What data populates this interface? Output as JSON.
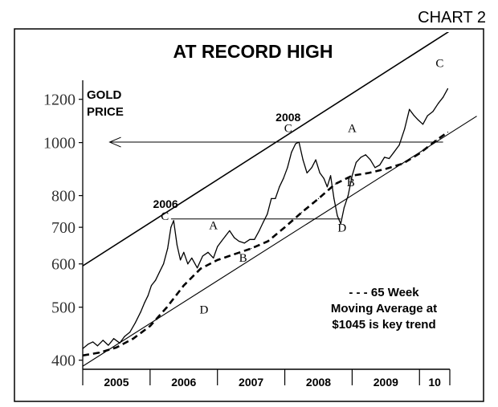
{
  "chart_label": "CHART  2",
  "chart_data": {
    "type": "line",
    "title": "AT RECORD HIGH",
    "ylabel_line1": "GOLD",
    "ylabel_line2": "PRICE",
    "y_scale": "log",
    "ylim": [
      385,
      1300
    ],
    "yticks": [
      {
        "value": 1200,
        "label": "1200"
      },
      {
        "value": 1000,
        "label": "1000"
      },
      {
        "value": 800,
        "label": "800"
      },
      {
        "value": 700,
        "label": "700"
      },
      {
        "value": 600,
        "label": "600"
      },
      {
        "value": 500,
        "label": "500"
      },
      {
        "value": 400,
        "label": "400"
      }
    ],
    "xlim": [
      2005.0,
      2010.45
    ],
    "years": [
      {
        "label": "2005",
        "start": 2005.0
      },
      {
        "label": "2006",
        "start": 2006.0
      },
      {
        "label": "2007",
        "start": 2007.0
      },
      {
        "label": "2008",
        "start": 2008.0
      },
      {
        "label": "2009",
        "start": 2009.0
      },
      {
        "label": "10",
        "start": 2010.0
      }
    ],
    "series": [
      {
        "name": "Gold price",
        "style": "solid",
        "x": [
          2005.0,
          2005.08,
          2005.15,
          2005.22,
          2005.3,
          2005.38,
          2005.46,
          2005.55,
          2005.62,
          2005.7,
          2005.78,
          2005.86,
          2005.92,
          2005.97,
          2006.02,
          2006.08,
          2006.14,
          2006.2,
          2006.26,
          2006.31,
          2006.35,
          2006.4,
          2006.45,
          2006.5,
          2006.56,
          2006.62,
          2006.7,
          2006.78,
          2006.86,
          2006.94,
          2007.0,
          2007.06,
          2007.12,
          2007.18,
          2007.25,
          2007.32,
          2007.4,
          2007.48,
          2007.55,
          2007.62,
          2007.68,
          2007.74,
          2007.8,
          2007.86,
          2007.92,
          2007.98,
          2008.04,
          2008.1,
          2008.16,
          2008.21,
          2008.27,
          2008.33,
          2008.4,
          2008.46,
          2008.52,
          2008.58,
          2008.63,
          2008.68,
          2008.73,
          2008.78,
          2008.83,
          2008.88,
          2008.94,
          2009.0,
          2009.06,
          2009.13,
          2009.2,
          2009.27,
          2009.34,
          2009.41,
          2009.48,
          2009.55,
          2009.62,
          2009.7,
          2009.78,
          2009.85,
          2009.92,
          2009.98,
          2010.05,
          2010.12,
          2010.2,
          2010.28,
          2010.35,
          2010.42
        ],
        "y": [
          420,
          428,
          432,
          425,
          435,
          426,
          438,
          430,
          442,
          450,
          468,
          490,
          510,
          525,
          548,
          560,
          580,
          600,
          640,
          700,
          720,
          650,
          610,
          630,
          600,
          615,
          590,
          620,
          630,
          615,
          645,
          660,
          675,
          690,
          670,
          660,
          655,
          665,
          665,
          690,
          715,
          740,
          790,
          790,
          830,
          860,
          900,
          960,
          995,
          1002,
          930,
          880,
          900,
          930,
          880,
          860,
          830,
          870,
          790,
          735,
          710,
          760,
          800,
          870,
          920,
          940,
          950,
          930,
          900,
          910,
          940,
          935,
          960,
          990,
          1060,
          1150,
          1120,
          1100,
          1080,
          1120,
          1140,
          1180,
          1210,
          1255
        ]
      },
      {
        "name": "65 Week Moving Average",
        "style": "dashed",
        "x": [
          2005.0,
          2005.25,
          2005.5,
          2005.75,
          2006.0,
          2006.25,
          2006.5,
          2006.75,
          2007.0,
          2007.25,
          2007.5,
          2007.75,
          2008.0,
          2008.25,
          2008.5,
          2008.75,
          2009.0,
          2009.25,
          2009.5,
          2009.75,
          2010.0,
          2010.25,
          2010.42
        ],
        "y": [
          408,
          413,
          422,
          438,
          462,
          500,
          548,
          588,
          610,
          625,
          640,
          660,
          700,
          745,
          790,
          840,
          870,
          880,
          895,
          915,
          955,
          1010,
          1045
        ]
      }
    ],
    "channel": {
      "upper": {
        "x": [
          2005.0,
          2010.45
        ],
        "y": [
          595,
          1600
        ]
      },
      "lower": {
        "x": [
          2005.0,
          2010.45
        ],
        "y": [
          390,
          1040
        ]
      }
    },
    "record_level_line": {
      "value": 1002,
      "x_start": 2005.4,
      "x_end": 2010.35
    },
    "resistance_line_2006": {
      "value": 725,
      "x_start": 2006.31,
      "x_end": 2008.83
    },
    "annotations": [
      {
        "text": "2006",
        "x": 2006.23,
        "y": 760
      },
      {
        "text": "C",
        "x": 2006.22,
        "y": 722
      },
      {
        "text": "A",
        "x": 2006.94,
        "y": 695
      },
      {
        "text": "B",
        "x": 2007.38,
        "y": 606
      },
      {
        "text": "D",
        "x": 2006.8,
        "y": 487
      },
      {
        "text": "2008",
        "x": 2008.05,
        "y": 1095
      },
      {
        "text": "C",
        "x": 2008.05,
        "y": 1045
      },
      {
        "text": "A",
        "x": 2009.0,
        "y": 1045
      },
      {
        "text": "B",
        "x": 2008.98,
        "y": 832
      },
      {
        "text": "D",
        "x": 2008.85,
        "y": 688
      },
      {
        "text": "C",
        "x": 2010.3,
        "y": 1375
      }
    ],
    "legend": {
      "line1": "- - - 65 Week",
      "line2": "Moving Average at",
      "line3": "$1045 is key trend",
      "position": "bottom-right"
    }
  }
}
